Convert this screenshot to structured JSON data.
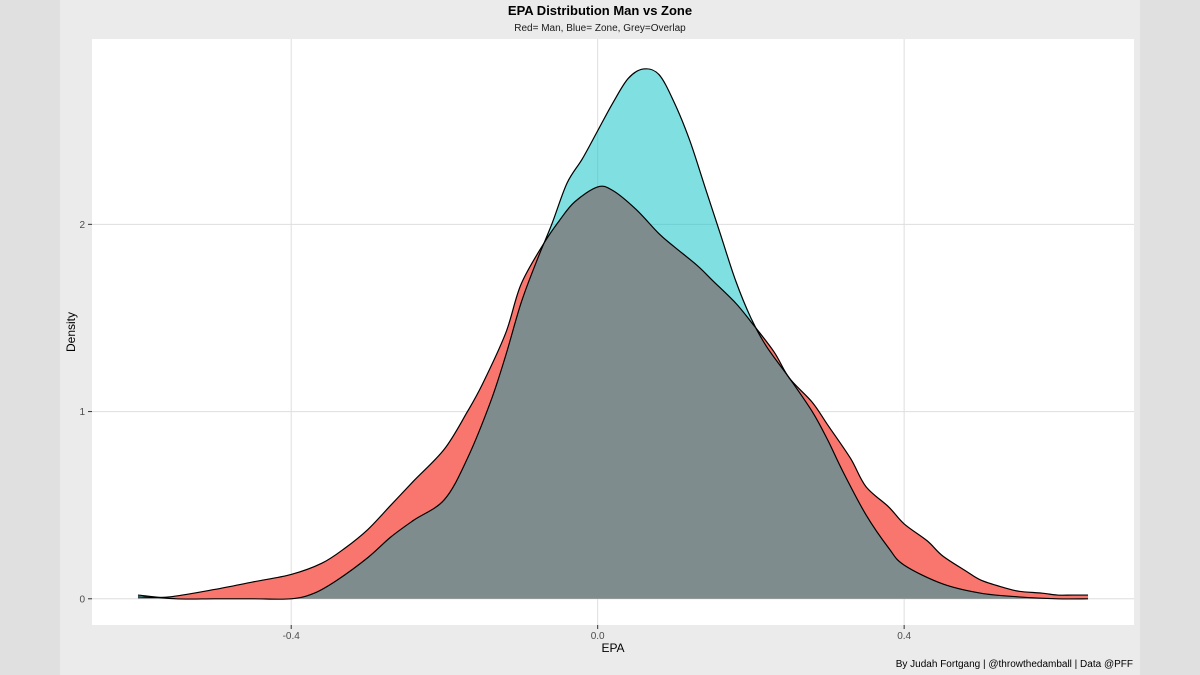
{
  "chart_data": {
    "type": "area",
    "title": "EPA Distribution Man vs Zone",
    "subtitle": "Red= Man, Blue= Zone, Grey=Overlap",
    "xlabel": "EPA",
    "ylabel": "Density",
    "caption": "By Judah Fortgang | @throwthedamball | Data @PFF",
    "xlim": [
      -0.66,
      0.7
    ],
    "ylim": [
      -0.14,
      2.99
    ],
    "x_ticks": [
      -0.4,
      0.0,
      0.4
    ],
    "x_tick_labels": [
      "-0.4",
      "0.0",
      "0.4"
    ],
    "y_ticks": [
      0,
      1,
      2
    ],
    "y_tick_labels": [
      "0",
      "1",
      "2"
    ],
    "grid": true,
    "series": [
      {
        "color": "#F8766D",
        "x": [
          -0.6,
          -0.56,
          -0.5,
          -0.45,
          -0.4,
          -0.36,
          -0.33,
          -0.3,
          -0.27,
          -0.24,
          -0.2,
          -0.17,
          -0.15,
          -0.12,
          -0.1,
          -0.07,
          -0.05,
          -0.03,
          0.0,
          0.02,
          0.05,
          0.08,
          0.1,
          0.13,
          0.15,
          0.18,
          0.2,
          0.23,
          0.25,
          0.28,
          0.3,
          0.33,
          0.35,
          0.38,
          0.4,
          0.43,
          0.45,
          0.48,
          0.5,
          0.53,
          0.55,
          0.58,
          0.6,
          0.62,
          0.64
        ],
        "y": [
          0.01,
          0.01,
          0.05,
          0.09,
          0.13,
          0.19,
          0.27,
          0.37,
          0.5,
          0.63,
          0.8,
          1.0,
          1.15,
          1.42,
          1.68,
          1.9,
          2.02,
          2.12,
          2.2,
          2.18,
          2.08,
          1.95,
          1.88,
          1.78,
          1.7,
          1.58,
          1.48,
          1.32,
          1.18,
          1.05,
          0.93,
          0.75,
          0.6,
          0.49,
          0.4,
          0.31,
          0.23,
          0.15,
          0.1,
          0.06,
          0.04,
          0.03,
          0.02,
          0.02,
          0.02
        ]
      },
      {
        "color": "#00BFC4",
        "x": [
          -0.6,
          -0.55,
          -0.5,
          -0.45,
          -0.4,
          -0.37,
          -0.34,
          -0.3,
          -0.27,
          -0.24,
          -0.2,
          -0.17,
          -0.14,
          -0.12,
          -0.1,
          -0.08,
          -0.06,
          -0.04,
          -0.02,
          0.0,
          0.02,
          0.04,
          0.06,
          0.08,
          0.1,
          0.12,
          0.14,
          0.16,
          0.18,
          0.2,
          0.22,
          0.25,
          0.28,
          0.3,
          0.32,
          0.35,
          0.38,
          0.4,
          0.45,
          0.5,
          0.55,
          0.6,
          0.64
        ],
        "y": [
          0.02,
          0.0,
          0.0,
          0.0,
          0.0,
          0.03,
          0.1,
          0.22,
          0.33,
          0.42,
          0.53,
          0.75,
          1.05,
          1.3,
          1.58,
          1.8,
          2.0,
          2.22,
          2.35,
          2.5,
          2.65,
          2.78,
          2.83,
          2.8,
          2.65,
          2.45,
          2.2,
          1.95,
          1.7,
          1.5,
          1.35,
          1.18,
          1.0,
          0.85,
          0.68,
          0.45,
          0.27,
          0.18,
          0.08,
          0.03,
          0.01,
          0.0,
          0.0
        ]
      }
    ],
    "overlap_color": "#7f8c8d"
  }
}
